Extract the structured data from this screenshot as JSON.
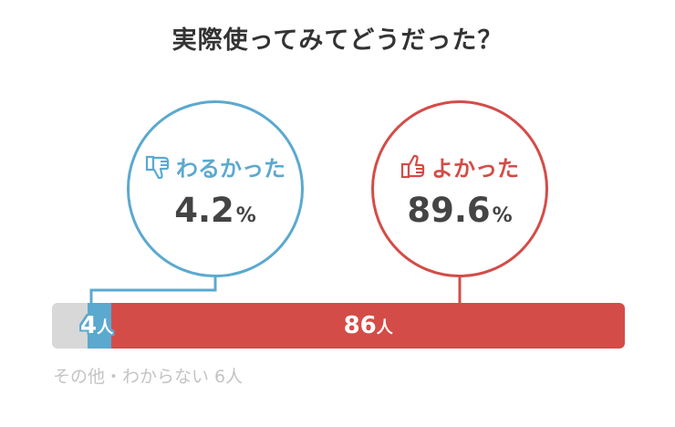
{
  "title": "実際使ってみてどうだった？",
  "colors": {
    "bad": "#5ba9cf",
    "good": "#d44c47",
    "other": "#d8d8d8",
    "other_text": "#c4c4c4"
  },
  "bad_circle": {
    "icon": "thumbs-down-icon",
    "label": "わるかった",
    "percent": "4.2",
    "percent_unit": "%"
  },
  "good_circle": {
    "icon": "thumbs-up-icon",
    "label": "よかった",
    "percent": "89.6",
    "percent_unit": "%"
  },
  "bar": {
    "other": {
      "count": "6"
    },
    "bad": {
      "count": "4",
      "unit": "人"
    },
    "good": {
      "count": "86",
      "unit": "人"
    }
  },
  "other_note": "その他・わからない 6人",
  "chart_data": {
    "type": "bar",
    "title": "実際使ってみてどうだった？",
    "categories": [
      "その他・わからない",
      "わるかった",
      "よかった"
    ],
    "values": [
      6,
      4,
      86
    ],
    "unit": "人",
    "percentages": {
      "わるかった": 4.2,
      "よかった": 89.6
    },
    "stacked": true
  }
}
